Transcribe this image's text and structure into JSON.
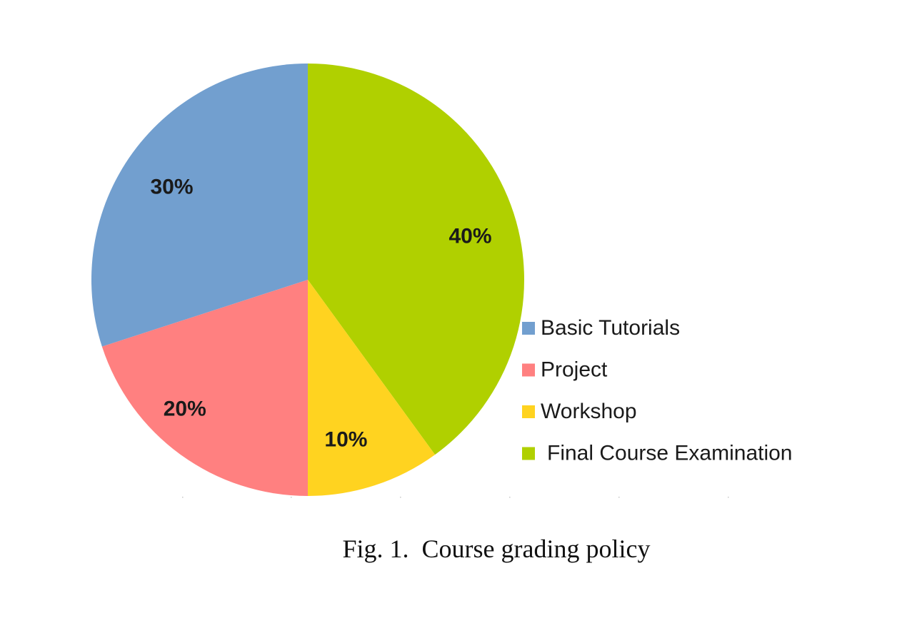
{
  "caption": "Fig. 1.  Course grading policy",
  "chart_data": {
    "type": "pie",
    "title": "",
    "slices": [
      {
        "name": "Final Course Examination",
        "value": 40,
        "label": "40%",
        "color": "#b0d000"
      },
      {
        "name": "Workshop",
        "value": 10,
        "label": "10%",
        "color": "#ffd320"
      },
      {
        "name": "Project",
        "value": 20,
        "label": "20%",
        "color": "#ff8080"
      },
      {
        "name": "Basic Tutorials",
        "value": 30,
        "label": "30%",
        "color": "#729fcf"
      }
    ],
    "legend": {
      "placement": "right",
      "items": [
        "Basic Tutorials",
        "Project",
        "Workshop",
        "Final Course Examination"
      ]
    }
  }
}
